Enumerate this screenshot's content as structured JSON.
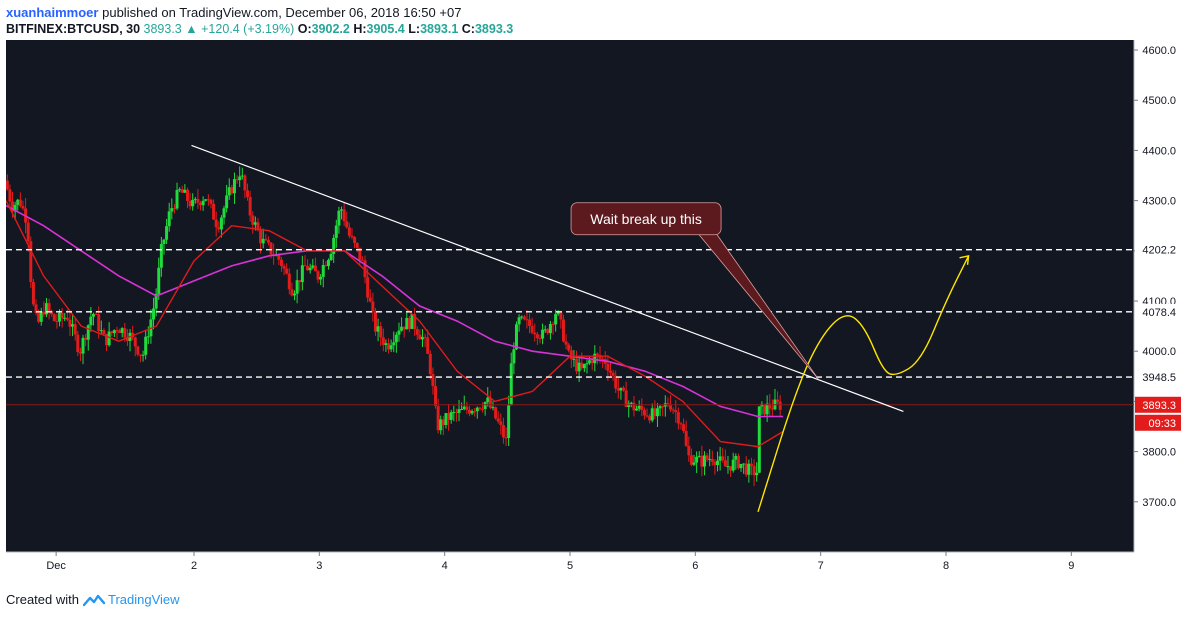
{
  "header": {
    "author": "xuanhaimmoer",
    "published_text": "published on TradingView.com, December 06, 2018 16:50 +07"
  },
  "ticker_line": {
    "symbol": "BITFINEX:BTCUSD, 30",
    "last": "3893.3",
    "change": "+120.4 (+3.19%)",
    "o_label": "O:",
    "o": "3902.2",
    "h_label": "H:",
    "h": "3905.4",
    "l_label": "L:",
    "l": "3893.1",
    "c_label": "C:",
    "c": "3893.3"
  },
  "footer": {
    "created_with": "Created with",
    "brand": "TradingView"
  },
  "colors": {
    "background": "#131722",
    "up_candle": "#26a69a",
    "down_candle": "#ef5350",
    "up_bright": "#1fdc3a",
    "down_bright": "#e21b1b",
    "ma_fast": "#e01b1b",
    "ma_slow": "#d633d6",
    "trendline": "#ffffff",
    "projection": "#ffe600",
    "callout_bg": "#5c1a1f"
  },
  "chart_data": {
    "type": "candlestick",
    "timeframe": "30",
    "ylim": [
      3600,
      4620
    ],
    "y_ticks": [
      "4600.0",
      "4500.0",
      "4400.0",
      "4300.0",
      "4200.0",
      "4100.0",
      "4000.0",
      "3900.0",
      "3800.0",
      "3700.0"
    ],
    "x_ticks": [
      "Dec",
      "2",
      "3",
      "4",
      "5",
      "6",
      "7",
      "8",
      "9"
    ],
    "x_range_days": [
      0.5,
      9.5
    ],
    "price_path": [
      [
        0.5,
        4340
      ],
      [
        0.56,
        4290
      ],
      [
        0.62,
        4300
      ],
      [
        0.68,
        4260
      ],
      [
        0.72,
        4100
      ],
      [
        0.76,
        4050
      ],
      [
        0.82,
        4090
      ],
      [
        0.9,
        4060
      ],
      [
        1.0,
        4070
      ],
      [
        1.1,
        4000
      ],
      [
        1.2,
        4080
      ],
      [
        1.3,
        4020
      ],
      [
        1.4,
        4050
      ],
      [
        1.5,
        4030
      ],
      [
        1.6,
        3990
      ],
      [
        1.7,
        4100
      ],
      [
        1.75,
        4200
      ],
      [
        1.82,
        4280
      ],
      [
        1.9,
        4320
      ],
      [
        2.0,
        4290
      ],
      [
        2.1,
        4310
      ],
      [
        2.2,
        4250
      ],
      [
        2.3,
        4320
      ],
      [
        2.38,
        4360
      ],
      [
        2.45,
        4280
      ],
      [
        2.55,
        4220
      ],
      [
        2.7,
        4180
      ],
      [
        2.8,
        4120
      ],
      [
        2.9,
        4170
      ],
      [
        3.0,
        4150
      ],
      [
        3.1,
        4200
      ],
      [
        3.18,
        4290
      ],
      [
        3.25,
        4230
      ],
      [
        3.35,
        4180
      ],
      [
        3.45,
        4050
      ],
      [
        3.55,
        4010
      ],
      [
        3.65,
        4050
      ],
      [
        3.75,
        4060
      ],
      [
        3.85,
        4020
      ],
      [
        3.9,
        3960
      ],
      [
        3.95,
        3850
      ],
      [
        4.05,
        3870
      ],
      [
        4.15,
        3880
      ],
      [
        4.25,
        3890
      ],
      [
        4.35,
        3900
      ],
      [
        4.45,
        3850
      ],
      [
        4.5,
        3820
      ],
      [
        4.55,
        4000
      ],
      [
        4.6,
        4060
      ],
      [
        4.7,
        4050
      ],
      [
        4.8,
        4030
      ],
      [
        4.9,
        4080
      ],
      [
        4.95,
        4040
      ],
      [
        5.0,
        3990
      ],
      [
        5.1,
        3960
      ],
      [
        5.2,
        3990
      ],
      [
        5.3,
        3980
      ],
      [
        5.4,
        3920
      ],
      [
        5.5,
        3890
      ],
      [
        5.6,
        3880
      ],
      [
        5.7,
        3870
      ],
      [
        5.8,
        3900
      ],
      [
        5.9,
        3860
      ],
      [
        5.95,
        3790
      ],
      [
        6.05,
        3780
      ],
      [
        6.15,
        3790
      ],
      [
        6.25,
        3770
      ],
      [
        6.35,
        3780
      ],
      [
        6.45,
        3760
      ],
      [
        6.5,
        3760
      ],
      [
        6.52,
        3880
      ],
      [
        6.6,
        3890
      ],
      [
        6.67,
        3893
      ]
    ],
    "ma_fast": [
      [
        0.5,
        4300
      ],
      [
        0.8,
        4150
      ],
      [
        1.1,
        4050
      ],
      [
        1.4,
        4020
      ],
      [
        1.7,
        4050
      ],
      [
        2.0,
        4180
      ],
      [
        2.3,
        4250
      ],
      [
        2.6,
        4240
      ],
      [
        2.9,
        4200
      ],
      [
        3.2,
        4200
      ],
      [
        3.5,
        4130
      ],
      [
        3.8,
        4060
      ],
      [
        4.1,
        3960
      ],
      [
        4.4,
        3900
      ],
      [
        4.7,
        3920
      ],
      [
        5.0,
        3990
      ],
      [
        5.3,
        3990
      ],
      [
        5.6,
        3950
      ],
      [
        5.9,
        3900
      ],
      [
        6.2,
        3820
      ],
      [
        6.5,
        3810
      ],
      [
        6.7,
        3840
      ]
    ],
    "ma_slow": [
      [
        0.5,
        4290
      ],
      [
        0.8,
        4250
      ],
      [
        1.1,
        4200
      ],
      [
        1.4,
        4150
      ],
      [
        1.7,
        4110
      ],
      [
        2.0,
        4140
      ],
      [
        2.3,
        4170
      ],
      [
        2.6,
        4190
      ],
      [
        2.9,
        4200
      ],
      [
        3.2,
        4200
      ],
      [
        3.5,
        4150
      ],
      [
        3.8,
        4090
      ],
      [
        4.1,
        4060
      ],
      [
        4.4,
        4020
      ],
      [
        4.7,
        4000
      ],
      [
        5.0,
        3990
      ],
      [
        5.3,
        3980
      ],
      [
        5.6,
        3960
      ],
      [
        5.9,
        3930
      ],
      [
        6.2,
        3890
      ],
      [
        6.5,
        3870
      ],
      [
        6.7,
        3870
      ]
    ],
    "horizontal_lines": [
      {
        "price": 4202.2,
        "label": "4202.2"
      },
      {
        "price": 4078.4,
        "label": "4078.4"
      },
      {
        "price": 3948.5,
        "label": "3948.5"
      }
    ],
    "current_price": {
      "price": 3893.3,
      "label": "3893.3",
      "countdown": "09:33"
    },
    "trendline": {
      "from": [
        1.98,
        4410
      ],
      "to": [
        7.66,
        3880
      ]
    },
    "callout": {
      "text": "Wait break up this",
      "anchor": [
        5.95,
        4220
      ],
      "pointer": [
        6.98,
        3945
      ]
    },
    "projection_path": [
      [
        6.5,
        3680
      ],
      [
        6.8,
        3920
      ],
      [
        7.0,
        4030
      ],
      [
        7.2,
        4080
      ],
      [
        7.35,
        4050
      ],
      [
        7.5,
        3960
      ],
      [
        7.6,
        3950
      ],
      [
        7.8,
        3980
      ],
      [
        8.0,
        4100
      ],
      [
        8.18,
        4190
      ]
    ]
  }
}
